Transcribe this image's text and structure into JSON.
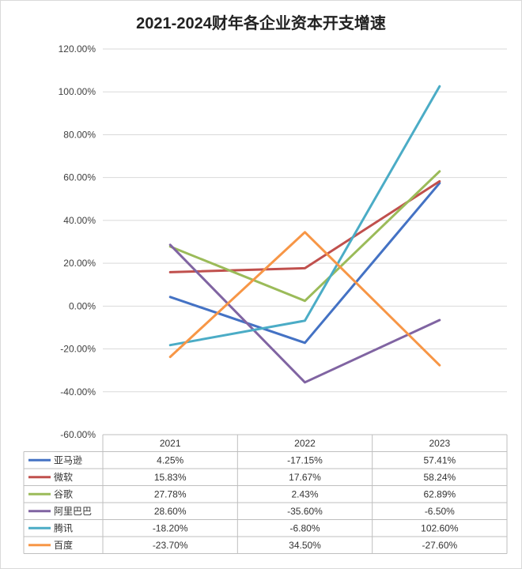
{
  "title": "2021-2024财年各企业资本开支增速",
  "chart_data": {
    "type": "line",
    "title": "2021-2024财年各企业资本开支增速",
    "categories": [
      "2021",
      "2022",
      "2023"
    ],
    "ylim": [
      -60,
      120
    ],
    "ytick_values": [
      -60,
      -40,
      -20,
      0,
      20,
      40,
      60,
      80,
      100,
      120
    ],
    "ytick_labels": [
      "-60.00%",
      "-40.00%",
      "-20.00%",
      "0.00%",
      "20.00%",
      "40.00%",
      "60.00%",
      "80.00%",
      "100.00%",
      "120.00%"
    ],
    "grid": true,
    "legend": "data-table-below",
    "series": [
      {
        "name": "亚马逊",
        "color": "#4472c4",
        "values": [
          4.25,
          -17.15,
          57.41
        ],
        "labels": [
          "4.25%",
          "-17.15%",
          "57.41%"
        ]
      },
      {
        "name": "微软",
        "color": "#c0504d",
        "values": [
          15.83,
          17.67,
          58.24
        ],
        "labels": [
          "15.83%",
          "17.67%",
          "58.24%"
        ]
      },
      {
        "name": "谷歌",
        "color": "#9bbb59",
        "values": [
          27.78,
          2.43,
          62.89
        ],
        "labels": [
          "27.78%",
          "2.43%",
          "62.89%"
        ]
      },
      {
        "name": "阿里巴巴",
        "color": "#8064a2",
        "values": [
          28.6,
          -35.6,
          -6.5
        ],
        "labels": [
          "28.60%",
          "-35.60%",
          "-6.50%"
        ]
      },
      {
        "name": "腾讯",
        "color": "#4bacc6",
        "values": [
          -18.2,
          -6.8,
          102.6
        ],
        "labels": [
          "-18.20%",
          "-6.80%",
          "102.60%"
        ]
      },
      {
        "name": "百度",
        "color": "#f79646",
        "values": [
          -23.7,
          34.5,
          -27.6
        ],
        "labels": [
          "-23.70%",
          "34.50%",
          "-27.60%"
        ]
      }
    ]
  }
}
